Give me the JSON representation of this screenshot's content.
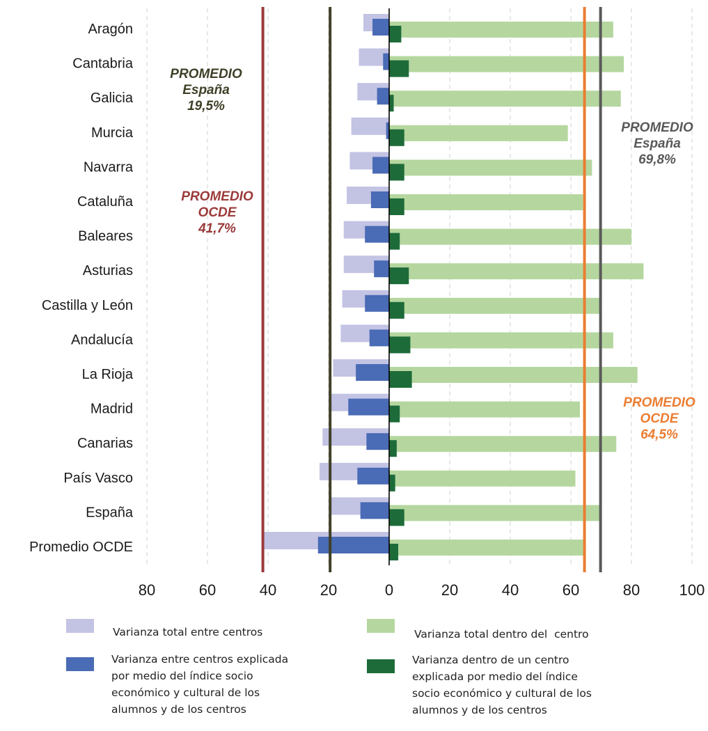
{
  "chart_data": {
    "type": "bar",
    "orientation": "horizontal",
    "categories": [
      "Aragón",
      "Cantabria",
      "Galicia",
      "Murcia",
      "Navarra",
      "Cataluña",
      "Baleares",
      "Asturias",
      "Castilla y León",
      "Andalucía",
      "La Rioja",
      "Madrid",
      "Canarias",
      "País Vasco",
      "España",
      "Promedio OCDE"
    ],
    "series": [
      {
        "name": "Varianza total entre centros",
        "side": "left",
        "color": "#c3c3e4",
        "values": [
          8.5,
          10,
          10.5,
          12.5,
          13,
          14,
          15,
          15,
          15.5,
          16,
          18.5,
          20,
          22,
          23,
          19.5,
          41.7
        ]
      },
      {
        "name": "Varianza entre centros explicada por medio del índice socio económico y cultural de los alumnos y de los centros",
        "side": "left",
        "color": "#4a6bb5",
        "values": [
          5.5,
          2,
          4,
          1,
          5.5,
          6,
          8,
          5,
          8,
          6.5,
          11,
          13.5,
          7.5,
          10.5,
          9.5,
          23.5
        ]
      },
      {
        "name": "Varianza total dentro del  centro",
        "side": "right",
        "color": "#b5d79f",
        "values": [
          74,
          77.5,
          76.5,
          59,
          67,
          64,
          80,
          84,
          70,
          74,
          82,
          63,
          75,
          61.5,
          70,
          64.5
        ]
      },
      {
        "name": "Varianza dentro de un centro explicada por medio del índice socio económico y cultural de los alumnos y de los centros",
        "side": "right",
        "color": "#1e6b3a",
        "values": [
          4,
          6.5,
          1.5,
          5,
          5,
          5,
          3.5,
          6.5,
          5,
          7,
          7.5,
          3.5,
          2.5,
          2,
          5,
          3
        ]
      }
    ],
    "x_ticks": [
      "80",
      "60",
      "40",
      "20",
      "0",
      "20",
      "40",
      "60",
      "80",
      "100"
    ],
    "xlim": [
      -80,
      100
    ],
    "grid": "vertical dashed",
    "reference_lines": [
      {
        "value": -41.7,
        "color": "#9b3a3a",
        "label": [
          "PROMEDIO",
          "OCDE",
          "41,7%"
        ]
      },
      {
        "value": -19.5,
        "color": "#404028",
        "label": [
          "PROMEDIO",
          "España",
          "19,5%"
        ]
      },
      {
        "value": 64.5,
        "color": "#ea7d32",
        "label": [
          "PROMEDIO",
          "OCDE",
          "64,5%"
        ]
      },
      {
        "value": 69.8,
        "color": "#595959",
        "label": [
          "PROMEDIO",
          "España",
          "69,8%"
        ]
      }
    ]
  },
  "legend": [
    {
      "color": "#c3c3e4",
      "text": "Varianza total entre centros"
    },
    {
      "color": "#4a6bb5",
      "text": "Varianza entre centros explicada\npor medio del índice socio\neconómico y cultural de los\nalumnos y de los centros"
    },
    {
      "color": "#b5d79f",
      "text": "Varianza total dentro del  centro"
    },
    {
      "color": "#1e6b3a",
      "text": "Varianza dentro de un centro\nexplicada por medio del índice\nsocio económico y cultural de los\nalumnos y de los centros"
    }
  ]
}
